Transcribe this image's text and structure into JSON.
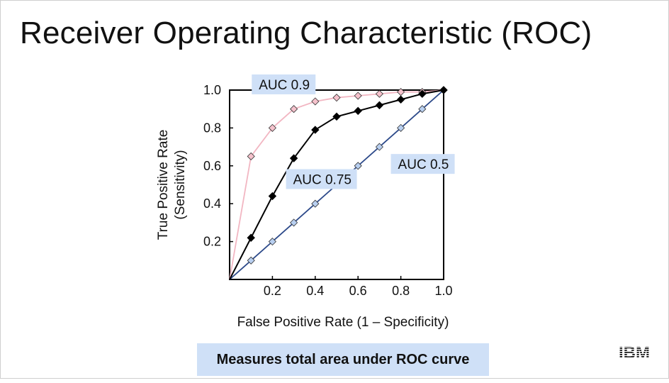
{
  "slide": {
    "title": "Receiver Operating Characteristic (ROC)",
    "caption": "Measures total area under ROC curve",
    "logo_text": "IBM"
  },
  "chart_data": {
    "type": "line",
    "xlabel": "False Positive Rate (1 – Specificity)",
    "ylabel_line1": "True Positive Rate",
    "ylabel_line2": "(Sensitivity)",
    "xlim": [
      0,
      1
    ],
    "ylim": [
      0,
      1
    ],
    "xticks": [
      0.2,
      0.4,
      0.6,
      0.8,
      1.0
    ],
    "yticks": [
      0.2,
      0.4,
      0.6,
      0.8,
      1.0
    ],
    "grid": false,
    "series": [
      {
        "name": "AUC 0.9",
        "color": "#f2b6c2",
        "marker_color": "#f5c2cc",
        "marker": "diamond-open",
        "points": [
          [
            0,
            0
          ],
          [
            0.1,
            0.65
          ],
          [
            0.2,
            0.8
          ],
          [
            0.3,
            0.9
          ],
          [
            0.4,
            0.94
          ],
          [
            0.5,
            0.96
          ],
          [
            0.6,
            0.97
          ],
          [
            0.7,
            0.98
          ],
          [
            0.8,
            0.99
          ],
          [
            0.9,
            0.99
          ],
          [
            1.0,
            1.0
          ]
        ]
      },
      {
        "name": "AUC 0.75",
        "color": "#000000",
        "marker_color": "#000000",
        "marker": "diamond-filled",
        "points": [
          [
            0,
            0
          ],
          [
            0.1,
            0.22
          ],
          [
            0.2,
            0.44
          ],
          [
            0.3,
            0.64
          ],
          [
            0.4,
            0.79
          ],
          [
            0.5,
            0.86
          ],
          [
            0.6,
            0.89
          ],
          [
            0.7,
            0.92
          ],
          [
            0.8,
            0.95
          ],
          [
            0.9,
            0.98
          ],
          [
            1.0,
            1.0
          ]
        ]
      },
      {
        "name": "AUC 0.5",
        "color": "#2d4a8a",
        "marker_color": "#b8cff0",
        "marker": "diamond-open",
        "points": [
          [
            0,
            0
          ],
          [
            0.1,
            0.1
          ],
          [
            0.2,
            0.2
          ],
          [
            0.3,
            0.3
          ],
          [
            0.4,
            0.4
          ],
          [
            0.5,
            0.5
          ],
          [
            0.6,
            0.6
          ],
          [
            0.7,
            0.7
          ],
          [
            0.8,
            0.8
          ],
          [
            0.9,
            0.9
          ],
          [
            1.0,
            1.0
          ]
        ]
      }
    ],
    "annotations": [
      {
        "text": "AUC 0.9",
        "x": 0.13,
        "y": 1.03
      },
      {
        "text": "AUC 0.75",
        "x": 0.29,
        "y": 0.53
      },
      {
        "text": "AUC 0.5",
        "x": 0.78,
        "y": 0.61
      }
    ],
    "annotation_bg": "#cfe0f7"
  }
}
